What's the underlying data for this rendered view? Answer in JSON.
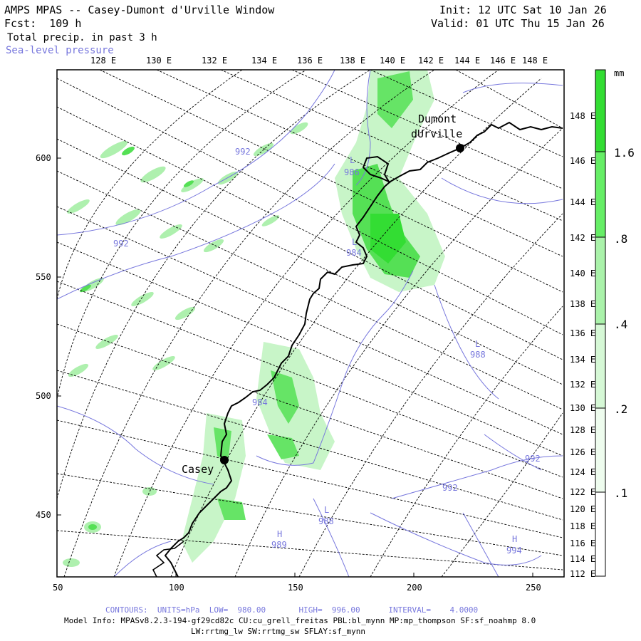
{
  "header": {
    "title": "AMPS MPAS -- Casey-Dumont d'Urville Window",
    "fcst": "Fcst:  109 h",
    "field": "Total precip. in past 3 h",
    "overlay": "Sea-level pressure",
    "init": "Init: 12 UTC Sat 10 Jan 26",
    "valid": "Valid: 01 UTC Thu 15 Jan 26"
  },
  "top_lon_labels": [
    "128 E",
    "130 E",
    "132 E",
    "134 E",
    "136 E",
    "138 E",
    "140 E",
    "142 E",
    "144 E",
    "146 E",
    "148 E"
  ],
  "right_lon_labels": [
    "148 E",
    "146 E",
    "144 E",
    "142 E",
    "140 E",
    "138 E",
    "136 E",
    "134 E",
    "132 E",
    "130 E",
    "128 E",
    "126 E",
    "124 E",
    "122 E",
    "120 E",
    "118 E",
    "116 E",
    "114 E",
    "112 E"
  ],
  "x_axis_labels": [
    "50",
    "100",
    "150",
    "200",
    "250"
  ],
  "y_axis_labels": [
    "600",
    "550",
    "500",
    "450"
  ],
  "stations": [
    {
      "name": "Casey"
    },
    {
      "name": "Dumont",
      "name2": "dUrville"
    }
  ],
  "pressure_labels": [
    "992",
    "992",
    "986",
    "L",
    "984",
    "L",
    "988",
    "L",
    "984",
    "992",
    "992",
    "L",
    "988",
    "H",
    "989",
    "H",
    "994"
  ],
  "colorbar": {
    "unit": "mm",
    "labels": [
      "1.6",
      ".8",
      ".4",
      ".2",
      ".1"
    ],
    "colors": [
      "#33dd33",
      "#66ee66",
      "#aaf2aa",
      "#d6f8d6",
      "#eefcee"
    ]
  },
  "footer": {
    "contours": "CONTOURS:  UNITS=hPa  LOW=  980.00       HIGH=  996.00      INTERVAL=    4.0000",
    "model_info": "Model Info: MPASv8.2.3-194-gf29cd82c CU:cu_grell_freitas PBL:bl_mynn MP:mp_thompson SF:sf_noahmp 8.0",
    "model_info2": "LW:rrtmg_lw SW:rrtmg_sw SFLAY:sf_mynn"
  }
}
